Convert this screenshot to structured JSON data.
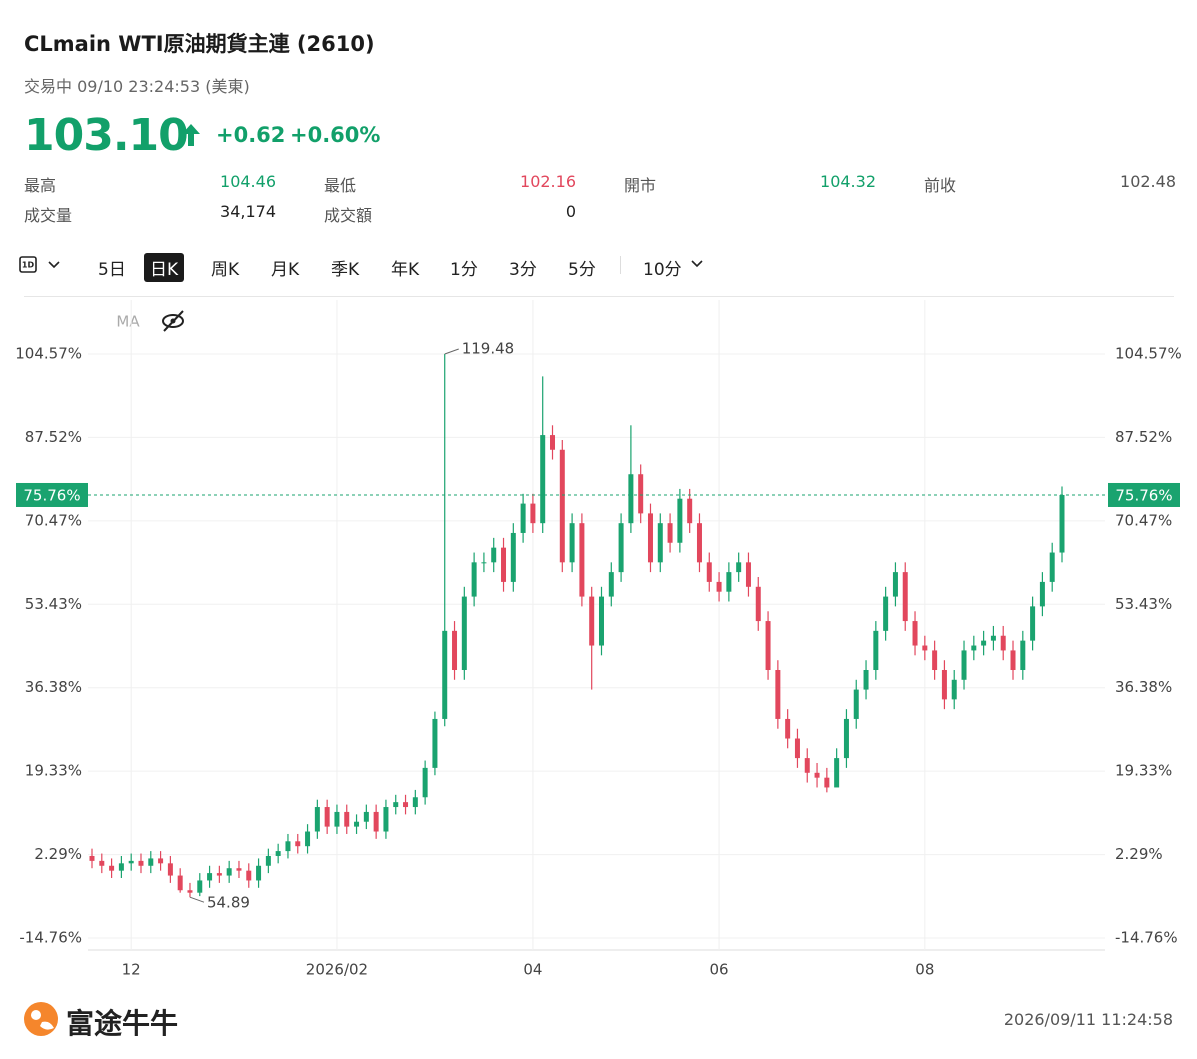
{
  "header": {
    "title": "CLmain  WTI原油期貨主連 (2610)",
    "status": "交易中 09/10 23:24:53 (美東)",
    "price": "103.10",
    "change": "+0.62",
    "change_pct": "+0.60%"
  },
  "stats": [
    [
      "最高",
      "104.46"
    ],
    [
      "最低",
      "102.16"
    ],
    [
      "開市",
      "104.32"
    ],
    [
      "前收",
      "102.48"
    ],
    [
      "成交量",
      "34,174"
    ],
    [
      "成交額",
      "0"
    ]
  ],
  "tabs": {
    "items": [
      "5日",
      "日K",
      "周K",
      "月K",
      "季K",
      "年K",
      "1分",
      "3分",
      "5分",
      "10分"
    ],
    "active": 1
  },
  "indicator": "MA",
  "chart_data": {
    "type": "candlestick",
    "up_color": "#1aa36f",
    "down_color": "#e2475d",
    "grid": true,
    "ylim": [
      -17.21,
      115.6
    ],
    "yticks": [
      {
        "value": 104.57,
        "label": "104.57%"
      },
      {
        "value": 87.52,
        "label": "87.52%"
      },
      {
        "value": 70.47,
        "label": "70.47%"
      },
      {
        "value": 53.43,
        "label": "53.43%"
      },
      {
        "value": 36.38,
        "label": "36.38%"
      },
      {
        "value": 19.33,
        "label": "19.33%"
      },
      {
        "value": 2.29,
        "label": "2.29%"
      },
      {
        "value": -14.76,
        "label": "-14.76%"
      }
    ],
    "current": {
      "value": 75.76,
      "label": "75.76%"
    },
    "annotations": {
      "high": "119.48",
      "low": "54.89"
    },
    "categories": [
      null,
      null,
      null,
      null,
      "12",
      null,
      null,
      null,
      null,
      null,
      null,
      null,
      null,
      null,
      null,
      null,
      null,
      null,
      null,
      null,
      null,
      null,
      null,
      null,
      null,
      "2026/02",
      null,
      null,
      null,
      null,
      null,
      null,
      null,
      null,
      null,
      null,
      null,
      null,
      null,
      null,
      null,
      null,
      null,
      null,
      null,
      "04",
      null,
      null,
      null,
      null,
      null,
      null,
      null,
      null,
      null,
      null,
      null,
      null,
      null,
      null,
      null,
      null,
      null,
      null,
      "06",
      null,
      null,
      null,
      null,
      null,
      null,
      null,
      null,
      null,
      null,
      null,
      null,
      null,
      null,
      null,
      null,
      null,
      null,
      null,
      null,
      "08",
      null,
      null,
      null,
      null,
      null,
      null,
      null,
      null,
      null,
      null,
      null,
      null,
      null,
      null
    ],
    "open": [
      2,
      1,
      0,
      -1,
      0.5,
      1,
      0,
      1.5,
      0.5,
      -2,
      -5,
      -5.5,
      -3,
      -1.5,
      -2,
      -0.5,
      -1,
      -3,
      0,
      2,
      3,
      5,
      4,
      7,
      12,
      8,
      11,
      8,
      9,
      11,
      7,
      12,
      13,
      12,
      14,
      20,
      30,
      48,
      40,
      55,
      62,
      62,
      65,
      58,
      68,
      74,
      70,
      88,
      85,
      62,
      70,
      55,
      45,
      55,
      60,
      70,
      80,
      72,
      62,
      70,
      66,
      75,
      70,
      62,
      58,
      56,
      60,
      62,
      57,
      50,
      40,
      30,
      26,
      22,
      19,
      18,
      16,
      22,
      30,
      36,
      40,
      48,
      55,
      60,
      50,
      45,
      44,
      40,
      34,
      38,
      44,
      45,
      46,
      47,
      44,
      40,
      46,
      53,
      58,
      64
    ],
    "high": [
      3.5,
      2.5,
      1.5,
      2,
      2.5,
      2.5,
      3,
      3,
      2,
      -0.5,
      -3.5,
      -1.5,
      0,
      0,
      1,
      1,
      0.5,
      1.5,
      3.5,
      4.5,
      6.5,
      6.5,
      8.5,
      13.5,
      13.5,
      12.5,
      12.5,
      10.5,
      12.5,
      12.5,
      13.5,
      14.5,
      14.5,
      15.5,
      21.5,
      31.5,
      104.57,
      50,
      57,
      64,
      64,
      67,
      67,
      70,
      76,
      76,
      100,
      90,
      87,
      72,
      72,
      57,
      57,
      62,
      72,
      90,
      82,
      74,
      72,
      72,
      77,
      77,
      72,
      64,
      60,
      62,
      64,
      64,
      59,
      52,
      42,
      32,
      28,
      24,
      21,
      20,
      24,
      32,
      38,
      42,
      50,
      57,
      62,
      62,
      52,
      47,
      46,
      42,
      40,
      46,
      47,
      48,
      49,
      49,
      46,
      48,
      55,
      60,
      66,
      77.5
    ],
    "low": [
      -0.5,
      -1.5,
      -2.5,
      -2.5,
      -1,
      -1.5,
      -1.5,
      -1,
      -3.5,
      -5.5,
      -6.42,
      -6.2,
      -4.5,
      -3.5,
      -3.5,
      -2.5,
      -4.5,
      -4.5,
      -1.5,
      0.5,
      1.5,
      2.5,
      2.5,
      5.5,
      6.5,
      6.5,
      6.5,
      6.5,
      7.5,
      5.5,
      5.5,
      10.5,
      10.5,
      10.5,
      12.5,
      18.5,
      28.5,
      38,
      38,
      53,
      60,
      60,
      56,
      56,
      66,
      68,
      68,
      83,
      60,
      60,
      53,
      36,
      43,
      53,
      58,
      68,
      70,
      60,
      60,
      64,
      64,
      68,
      60,
      56,
      54,
      54,
      58,
      55,
      48,
      38,
      28,
      24,
      20,
      17,
      16,
      15,
      16.5,
      20,
      28,
      34,
      38,
      46,
      53,
      48,
      43,
      42,
      38,
      32,
      32,
      36,
      42,
      43,
      44,
      42,
      38,
      38,
      44,
      51,
      56,
      62
    ],
    "close": [
      1,
      0,
      -1,
      0.5,
      1,
      0,
      1.5,
      0.5,
      -2,
      -5,
      -5.5,
      -3,
      -1.5,
      -2,
      -0.5,
      -1,
      -3,
      0,
      2,
      3,
      5,
      4,
      7,
      12,
      8,
      11,
      8,
      9,
      11,
      7,
      12,
      13,
      12,
      14,
      20,
      30,
      48,
      40,
      55,
      62,
      62,
      65,
      58,
      68,
      74,
      70,
      88,
      85,
      62,
      70,
      55,
      45,
      55,
      60,
      70,
      80,
      72,
      62,
      70,
      66,
      75,
      70,
      62,
      58,
      56,
      60,
      62,
      57,
      50,
      40,
      30,
      26,
      22,
      19,
      18,
      16,
      22,
      30,
      36,
      40,
      48,
      55,
      60,
      50,
      45,
      44,
      40,
      34,
      38,
      44,
      45,
      46,
      47,
      44,
      40,
      46,
      53,
      58,
      64,
      75.76
    ]
  },
  "footer": {
    "brand": "富途牛牛",
    "timestamp": "2026/09/11 11:24:58"
  }
}
